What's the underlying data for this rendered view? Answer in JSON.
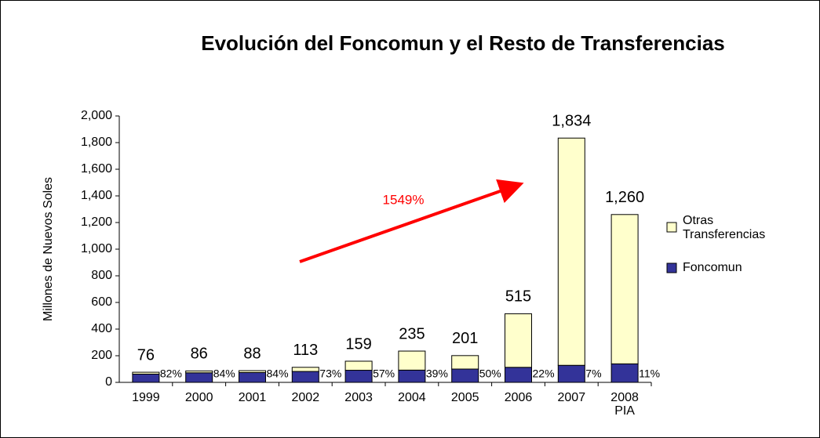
{
  "chart_data": {
    "type": "stacked_bar",
    "title": "Evolución del Foncomun y el Resto de Transferencias",
    "y_label": "Millones de Nuevos Soles",
    "categories": [
      "1999",
      "2000",
      "2001",
      "2002",
      "2003",
      "2004",
      "2005",
      "2006",
      "2007",
      "2008\nPIA"
    ],
    "series": [
      {
        "name": "Foncomun",
        "color": "#333399",
        "values": [
          62,
          72,
          74,
          82,
          91,
          92,
          100,
          113,
          128,
          139
        ]
      },
      {
        "name": "Otras Transferencias",
        "color": "#ffffcc",
        "values": [
          14,
          14,
          14,
          31,
          68,
          143,
          101,
          402,
          1706,
          1121
        ]
      }
    ],
    "total_labels": [
      "76",
      "86",
      "88",
      "113",
      "159",
      "235",
      "201",
      "515",
      "1,834",
      "1,260"
    ],
    "share_labels": [
      "82%",
      "84%",
      "84%",
      "73%",
      "57%",
      "39%",
      "50%",
      "22%",
      "7%",
      "11%"
    ],
    "annotation": "1549%",
    "ylim": [
      0,
      2000
    ],
    "yticks": [
      0,
      200,
      400,
      600,
      800,
      {
        "value": 1000,
        "label": "1,000"
      },
      {
        "value": 1200,
        "label": "1,200"
      },
      {
        "value": 1400,
        "label": "1,400"
      },
      {
        "value": 1600,
        "label": "1,600"
      },
      {
        "value": 1800,
        "label": "1,800"
      },
      {
        "value": 2000,
        "label": "2,000"
      }
    ]
  }
}
